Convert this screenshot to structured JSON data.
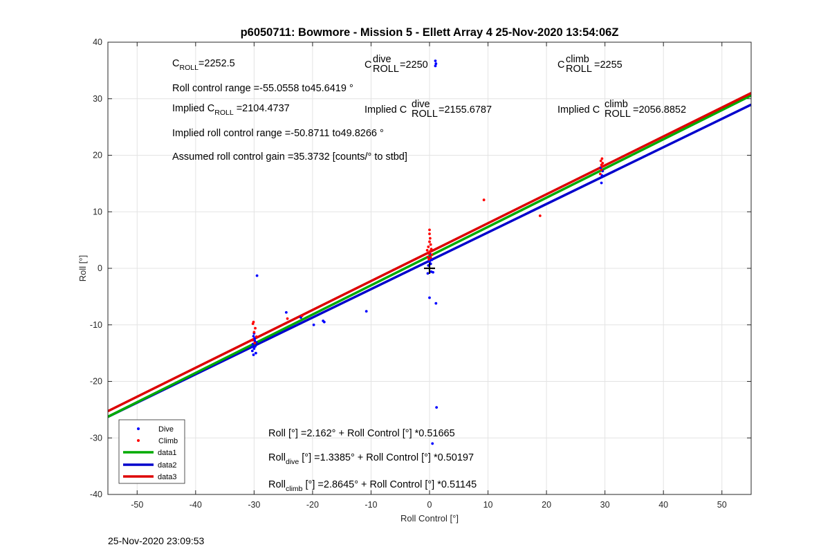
{
  "chart_data": {
    "type": "scatter",
    "title": "p6050711: Bowmore - Mission 5 - Ellett Array 4 25-Nov-2020 13:54:06Z",
    "xlabel": "Roll Control [°]",
    "ylabel": "Roll [°]",
    "xlim": [
      -55,
      55
    ],
    "ylim": [
      -40,
      40
    ],
    "x_ticks": [
      -50,
      -40,
      -30,
      -20,
      -10,
      0,
      10,
      20,
      30,
      40,
      50
    ],
    "y_ticks": [
      -40,
      -30,
      -20,
      -10,
      0,
      10,
      20,
      30,
      40
    ],
    "grid": true,
    "legend_position": "bottom-left",
    "series": [
      {
        "name": "Dive",
        "kind": "scatter",
        "color": "#0000ff",
        "points": [
          [
            -30.1,
            -12.0
          ],
          [
            -29.9,
            -12.8
          ],
          [
            -30.2,
            -13.4
          ],
          [
            -29.8,
            -13.8
          ],
          [
            -30.0,
            -14.2
          ],
          [
            -30.3,
            -14.6
          ],
          [
            -29.7,
            -15.0
          ],
          [
            -30.1,
            -15.3
          ],
          [
            -29.9,
            -12.4
          ],
          [
            -30.0,
            -11.5
          ],
          [
            -29.6,
            -13.1
          ],
          [
            -30.4,
            -13.9
          ],
          [
            -29.5,
            -1.3
          ],
          [
            -24.5,
            -7.8
          ],
          [
            -22.0,
            -8.7
          ],
          [
            -19.8,
            -10.0
          ],
          [
            -18.2,
            -9.3
          ],
          [
            -18.0,
            -9.5
          ],
          [
            -10.8,
            -7.6
          ],
          [
            -0.2,
            0.5
          ],
          [
            0.0,
            1.2
          ],
          [
            0.2,
            0.8
          ],
          [
            -0.1,
            1.8
          ],
          [
            0.3,
            -0.6
          ],
          [
            -0.3,
            -0.9
          ],
          [
            0.1,
            2.5
          ],
          [
            0.4,
            1.5
          ],
          [
            0.6,
            -0.7
          ],
          [
            0.0,
            -5.2
          ],
          [
            1.1,
            -6.2
          ],
          [
            1.2,
            -24.6
          ],
          [
            0.5,
            -31.0
          ],
          [
            1.0,
            36.7
          ],
          [
            1.1,
            36.2
          ],
          [
            1.0,
            35.8
          ],
          [
            29.4,
            15.1
          ],
          [
            29.5,
            16.4
          ],
          [
            29.6,
            17.2
          ],
          [
            29.3,
            17.8
          ]
        ]
      },
      {
        "name": "Climb",
        "kind": "scatter",
        "color": "#ff0000",
        "points": [
          [
            -30.2,
            -9.8
          ],
          [
            -29.8,
            -10.6
          ],
          [
            -30.0,
            -11.3
          ],
          [
            -29.6,
            -12.1
          ],
          [
            -30.3,
            -12.7
          ],
          [
            -29.9,
            -13.2
          ],
          [
            -30.1,
            -9.5
          ],
          [
            -24.3,
            -8.9
          ],
          [
            -21.8,
            -8.4
          ],
          [
            -0.3,
            2.0
          ],
          [
            -0.1,
            2.6
          ],
          [
            0.1,
            3.0
          ],
          [
            0.3,
            3.4
          ],
          [
            -0.2,
            3.8
          ],
          [
            0.2,
            4.2
          ],
          [
            0.0,
            4.7
          ],
          [
            -0.4,
            3.2
          ],
          [
            0.4,
            2.4
          ],
          [
            0.1,
            5.3
          ],
          [
            0.0,
            6.1
          ],
          [
            0.0,
            6.8
          ],
          [
            -0.1,
            1.6
          ],
          [
            0.2,
            1.9
          ],
          [
            9.3,
            12.1
          ],
          [
            18.9,
            9.3
          ],
          [
            29.2,
            16.7
          ],
          [
            29.4,
            17.4
          ],
          [
            29.5,
            18.0
          ],
          [
            29.6,
            18.6
          ],
          [
            29.3,
            19.0
          ],
          [
            29.5,
            19.4
          ],
          [
            29.4,
            18.3
          ]
        ]
      },
      {
        "name": "data1",
        "kind": "line",
        "color": "#00aa00",
        "intercept": 2.162,
        "slope": 0.51665
      },
      {
        "name": "data2",
        "kind": "line",
        "color": "#0000cc",
        "intercept": 1.3385,
        "slope": 0.50197
      },
      {
        "name": "data3",
        "kind": "line",
        "color": "#dd0000",
        "intercept": 2.8645,
        "slope": 0.51145
      }
    ],
    "annotations": {
      "c_roll_base": "C",
      "c_roll_sub": "ROLL",
      "c_roll_val": "=2252.5",
      "c_dive_sup": "dive",
      "c_dive_val": "=2250",
      "c_climb_sup": "climb",
      "c_climb_val": "=2255",
      "roll_range": "Roll control range =-55.0558 to45.6419 °",
      "implied_prefix": "Implied C",
      "implied_val": "=2104.4737",
      "implied_dive_val": "=2155.6787",
      "implied_climb_val": "=2056.8852",
      "implied_range": "Implied roll control range =-50.8711 to49.8266 °",
      "gain": "Assumed roll control gain =35.3732 [counts/° to stbd]",
      "fit_all": "Roll [°] =2.162° + Roll Control [°] *0.51665",
      "fit_roll_word": "Roll",
      "fit_dive_sub": "dive",
      "fit_dive_rest": " [°] =1.3385° + Roll Control [°] *0.50197",
      "fit_climb_sub": "climb",
      "fit_climb_rest": " [°] =2.8645° + Roll Control [°] *0.51145"
    },
    "marker": {
      "name": "origin",
      "x": 0,
      "y": 0,
      "color": "#000000"
    }
  },
  "footer": {
    "timestamp": "25-Nov-2020 23:09:53"
  }
}
